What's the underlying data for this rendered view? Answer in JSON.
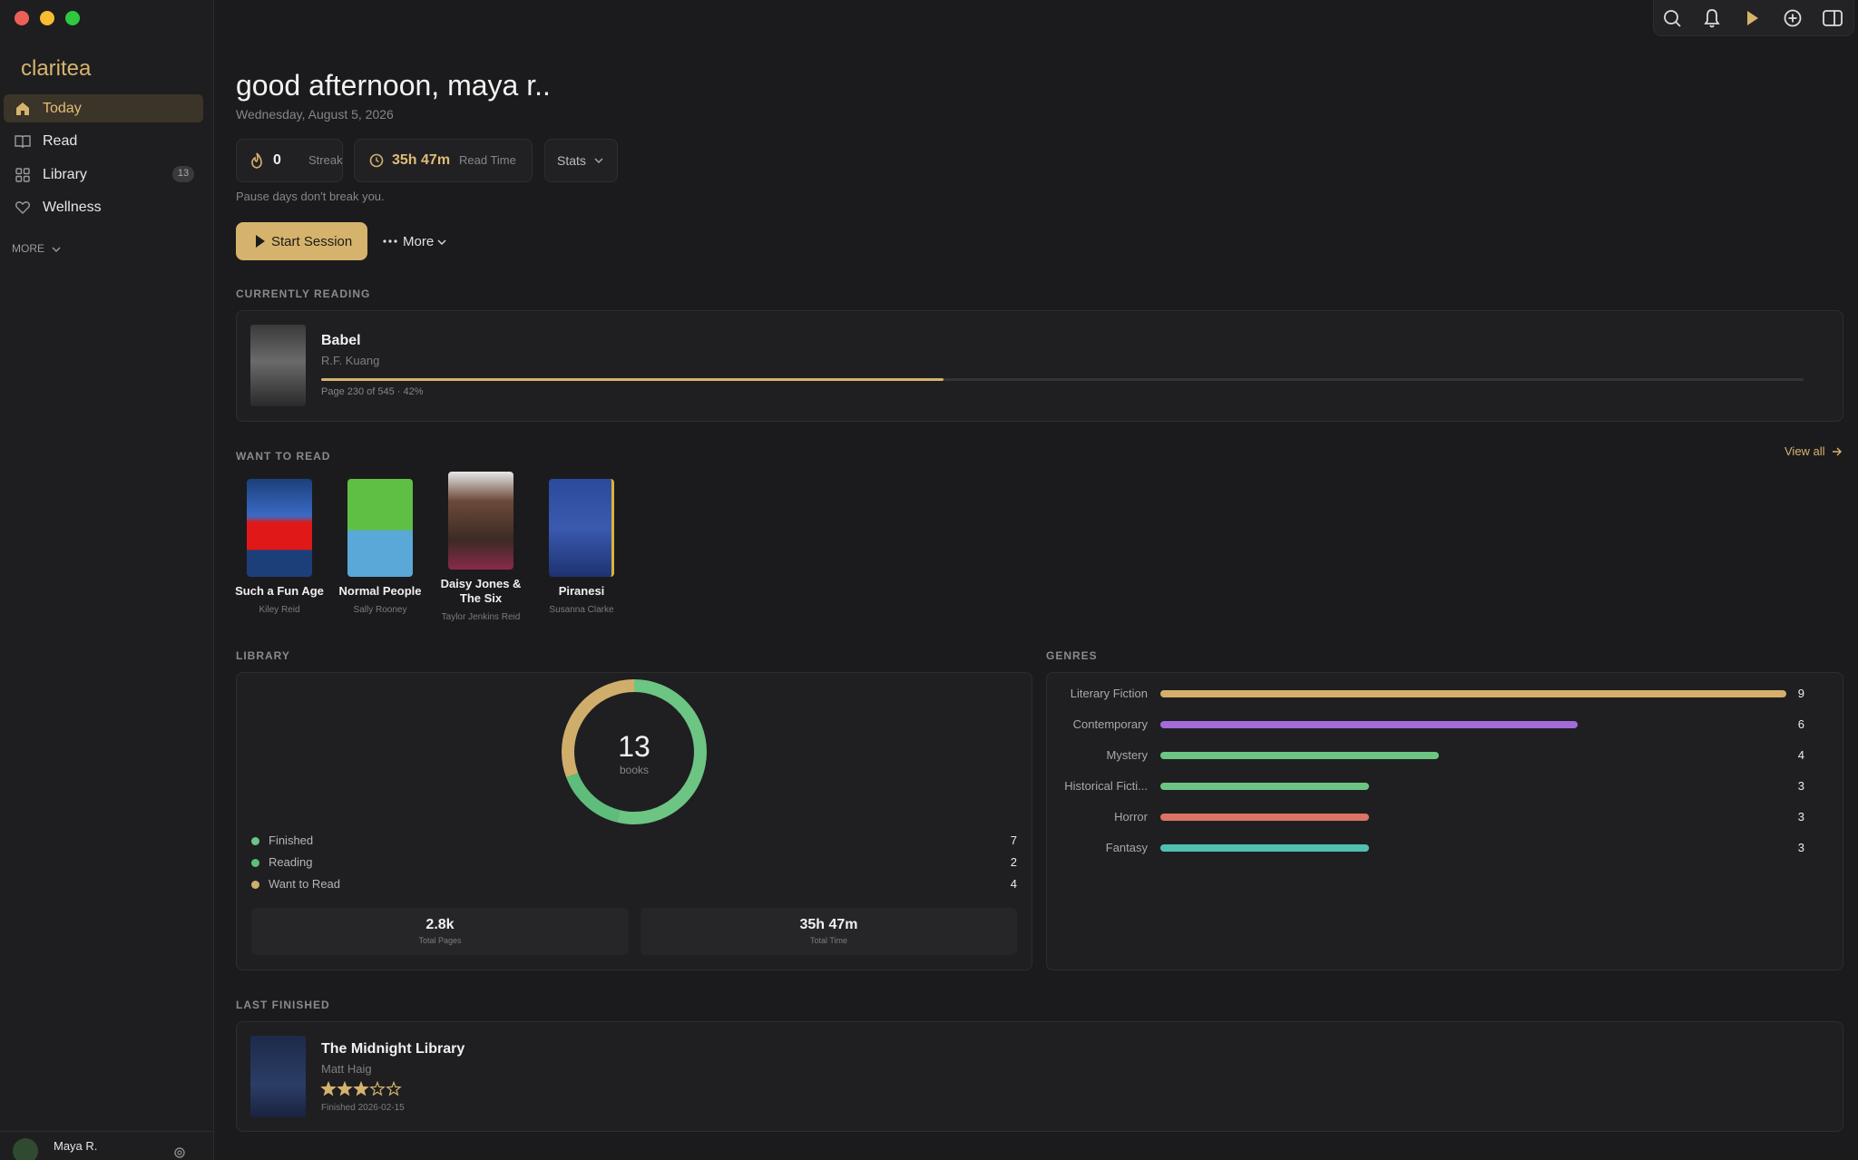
{
  "sidebar": {
    "brand": "claritea",
    "nav": [
      {
        "label": "Today"
      },
      {
        "label": "Read"
      },
      {
        "label": "Library",
        "badge": 13
      },
      {
        "label": "Wellness"
      }
    ],
    "more": "MORE",
    "user": "Maya R."
  },
  "header": {
    "greeting": "good afternoon, maya r..",
    "date": "Wednesday, August 5, 2026"
  },
  "stats": {
    "streak_value": 0,
    "streak_label": "Streak",
    "read_time_value": "35h 47m",
    "read_time_label": "Read Time",
    "stats_button": "Stats",
    "note": "Pause days don't break you."
  },
  "actions": {
    "start": "Start Session",
    "more": "More"
  },
  "currently_reading": {
    "heading": "CURRENTLY READING",
    "title": "Babel",
    "author": "R.F. Kuang",
    "progress": 42,
    "progress_label": "Page 230 of 545 · 42%"
  },
  "want_to_read": {
    "heading": "WANT TO READ",
    "view_all": "View all",
    "books": [
      {
        "title": "Such a Fun Age",
        "author": "Kiley Reid"
      },
      {
        "title": "Normal People",
        "author": "Sally Rooney"
      },
      {
        "title": "Daisy Jones & The Six",
        "author": "Taylor Jenkins Reid"
      },
      {
        "title": "Piranesi",
        "author": "Susanna Clarke"
      }
    ]
  },
  "library": {
    "heading": "LIBRARY",
    "total": 13,
    "total_unit": "books",
    "status": [
      {
        "name": "Finished",
        "value": 7,
        "color": "#6cc583"
      },
      {
        "name": "Reading",
        "value": 2,
        "color": "#5fbd7c"
      },
      {
        "name": "Want to Read",
        "value": 4,
        "color": "#cfae6b"
      }
    ],
    "total_pages": "2.8k",
    "total_pages_label": "Total Pages",
    "total_time": "35h 47m",
    "total_time_label": "Total Time"
  },
  "genres": {
    "heading": "GENRES",
    "type": "bar",
    "categories": [
      "Literary Fiction",
      "Contemporary",
      "Mystery",
      "Historical Ficti...",
      "Horror",
      "Fantasy"
    ],
    "values": [
      9,
      6,
      4,
      3,
      3,
      3
    ],
    "colors": [
      "#d4b06a",
      "#a46ad8",
      "#6cc583",
      "#6cc583",
      "#dc7364",
      "#4fc0b0"
    ]
  },
  "last_finished": {
    "heading": "LAST FINISHED",
    "title": "The Midnight Library",
    "author": "Matt Haig",
    "rating": 3,
    "rating_max": 5,
    "finished": "Finished 2026-02-15"
  }
}
